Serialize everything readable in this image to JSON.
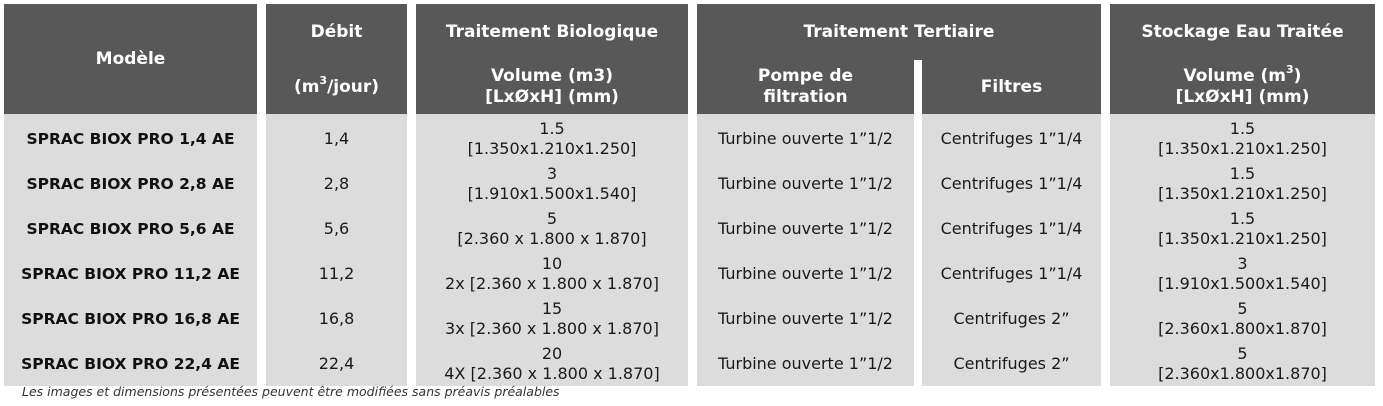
{
  "headers": {
    "model": "Modèle",
    "flow_title": "Débit",
    "flow_unit_open": "(m",
    "flow_unit_sup": "3",
    "flow_unit_close": "/jour)",
    "bio_title": "Traitement Biologique",
    "bio_sub_1": "Volume (m3)",
    "bio_sub_2": "[LxØxH] (mm)",
    "tert_title": "Traitement Tertiaire",
    "pump_1": "Pompe de",
    "pump_2": "filtration",
    "filters": "Filtres",
    "storage_title": "Stockage Eau Traitée",
    "storage_sub_open": "Volume (m",
    "storage_sub_sup": "3",
    "storage_sub_close": ")",
    "storage_sub_2": "[LxØxH] (mm)"
  },
  "rows": [
    {
      "model": "SPRAC BIOX PRO 1,4 AE",
      "flow": "1,4",
      "bio_vol": "1.5",
      "bio_dim": "[1.350x1.210x1.250]",
      "pump": "Turbine ouverte 1”1/2",
      "filters": "Centrifuges  1”1/4",
      "sto_vol": "1.5",
      "sto_dim": "[1.350x1.210x1.250]"
    },
    {
      "model": "SPRAC BIOX PRO 2,8 AE",
      "flow": "2,8",
      "bio_vol": "3",
      "bio_dim": "[1.910x1.500x1.540]",
      "pump": "Turbine ouverte 1”1/2",
      "filters": "Centrifuges  1”1/4",
      "sto_vol": "1.5",
      "sto_dim": "[1.350x1.210x1.250]"
    },
    {
      "model": "SPRAC BIOX PRO 5,6 AE",
      "flow": "5,6",
      "bio_vol": "5",
      "bio_dim": "[2.360 x 1.800 x 1.870]",
      "pump": "Turbine ouverte 1”1/2",
      "filters": "Centrifuges  1”1/4",
      "sto_vol": "1.5",
      "sto_dim": "[1.350x1.210x1.250]"
    },
    {
      "model": "SPRAC BIOX PRO 11,2 AE",
      "flow": "11,2",
      "bio_vol": "10",
      "bio_dim": "2x [2.360 x 1.800 x 1.870]",
      "pump": "Turbine ouverte 1”1/2",
      "filters": "Centrifuges  1”1/4",
      "sto_vol": "3",
      "sto_dim": "[1.910x1.500x1.540]"
    },
    {
      "model": "SPRAC BIOX PRO 16,8 AE",
      "flow": "16,8",
      "bio_vol": "15",
      "bio_dim": "3x [2.360 x 1.800 x 1.870]",
      "pump": "Turbine ouverte 1”1/2",
      "filters": "Centrifuges  2”",
      "sto_vol": "5",
      "sto_dim": "[2.360x1.800x1.870]"
    },
    {
      "model": "SPRAC BIOX PRO 22,4 AE",
      "flow": "22,4",
      "bio_vol": "20",
      "bio_dim": "4X [2.360 x 1.800 x 1.870]",
      "pump": "Turbine ouverte 1”1/2",
      "filters": "Centrifuges  2”",
      "sto_vol": "5",
      "sto_dim": "[2.360x1.800x1.870]"
    }
  ],
  "footnote": "Les images et dimensions présentées peuvent être modifiées sans préavis préalables"
}
